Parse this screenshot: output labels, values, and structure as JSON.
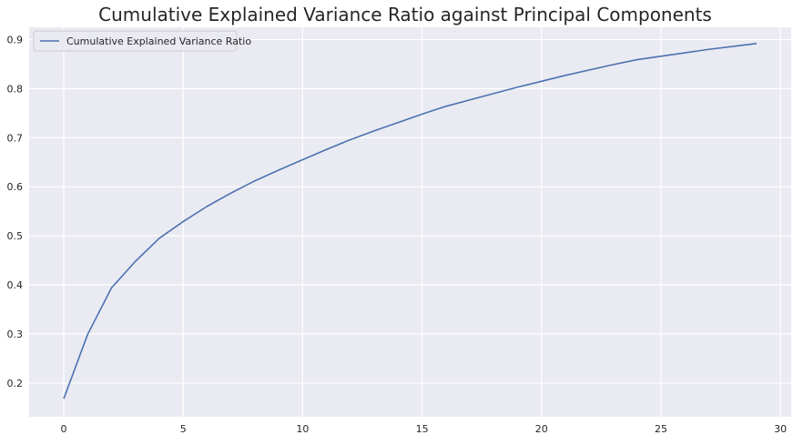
{
  "chart_data": {
    "type": "line",
    "title": "Cumulative Explained Variance Ratio against Principal Components",
    "xlabel": "",
    "ylabel": "",
    "xlim": [
      -1.45,
      30.45
    ],
    "ylim": [
      0.131,
      0.925
    ],
    "x_ticks": [
      0,
      5,
      10,
      15,
      20,
      25,
      30
    ],
    "x_tick_labels": [
      "0",
      "5",
      "10",
      "15",
      "20",
      "25",
      "30"
    ],
    "y_ticks": [
      0.2,
      0.3,
      0.4,
      0.5,
      0.6,
      0.7,
      0.8,
      0.9
    ],
    "y_tick_labels": [
      "0.2",
      "0.3",
      "0.4",
      "0.5",
      "0.6",
      "0.7",
      "0.8",
      "0.9"
    ],
    "grid": true,
    "legend_position": "top-left",
    "series": [
      {
        "name": "Cumulative Explained Variance Ratio",
        "color": "#4c72b0",
        "x": [
          0,
          1,
          2,
          3,
          4,
          5,
          6,
          7,
          8,
          9,
          10,
          11,
          12,
          13,
          14,
          15,
          16,
          17,
          18,
          19,
          20,
          21,
          22,
          23,
          24,
          25,
          26,
          27,
          28,
          29
        ],
        "y": [
          0.168,
          0.299,
          0.394,
          0.448,
          0.495,
          0.529,
          0.56,
          0.587,
          0.612,
          0.634,
          0.655,
          0.676,
          0.696,
          0.714,
          0.731,
          0.748,
          0.764,
          0.777,
          0.79,
          0.803,
          0.815,
          0.827,
          0.838,
          0.849,
          0.859,
          0.866,
          0.873,
          0.88,
          0.886,
          0.892
        ]
      }
    ]
  },
  "colors": {
    "plot_background": "#eaeaf2",
    "grid": "#ffffff",
    "line": "#4c72b0"
  }
}
